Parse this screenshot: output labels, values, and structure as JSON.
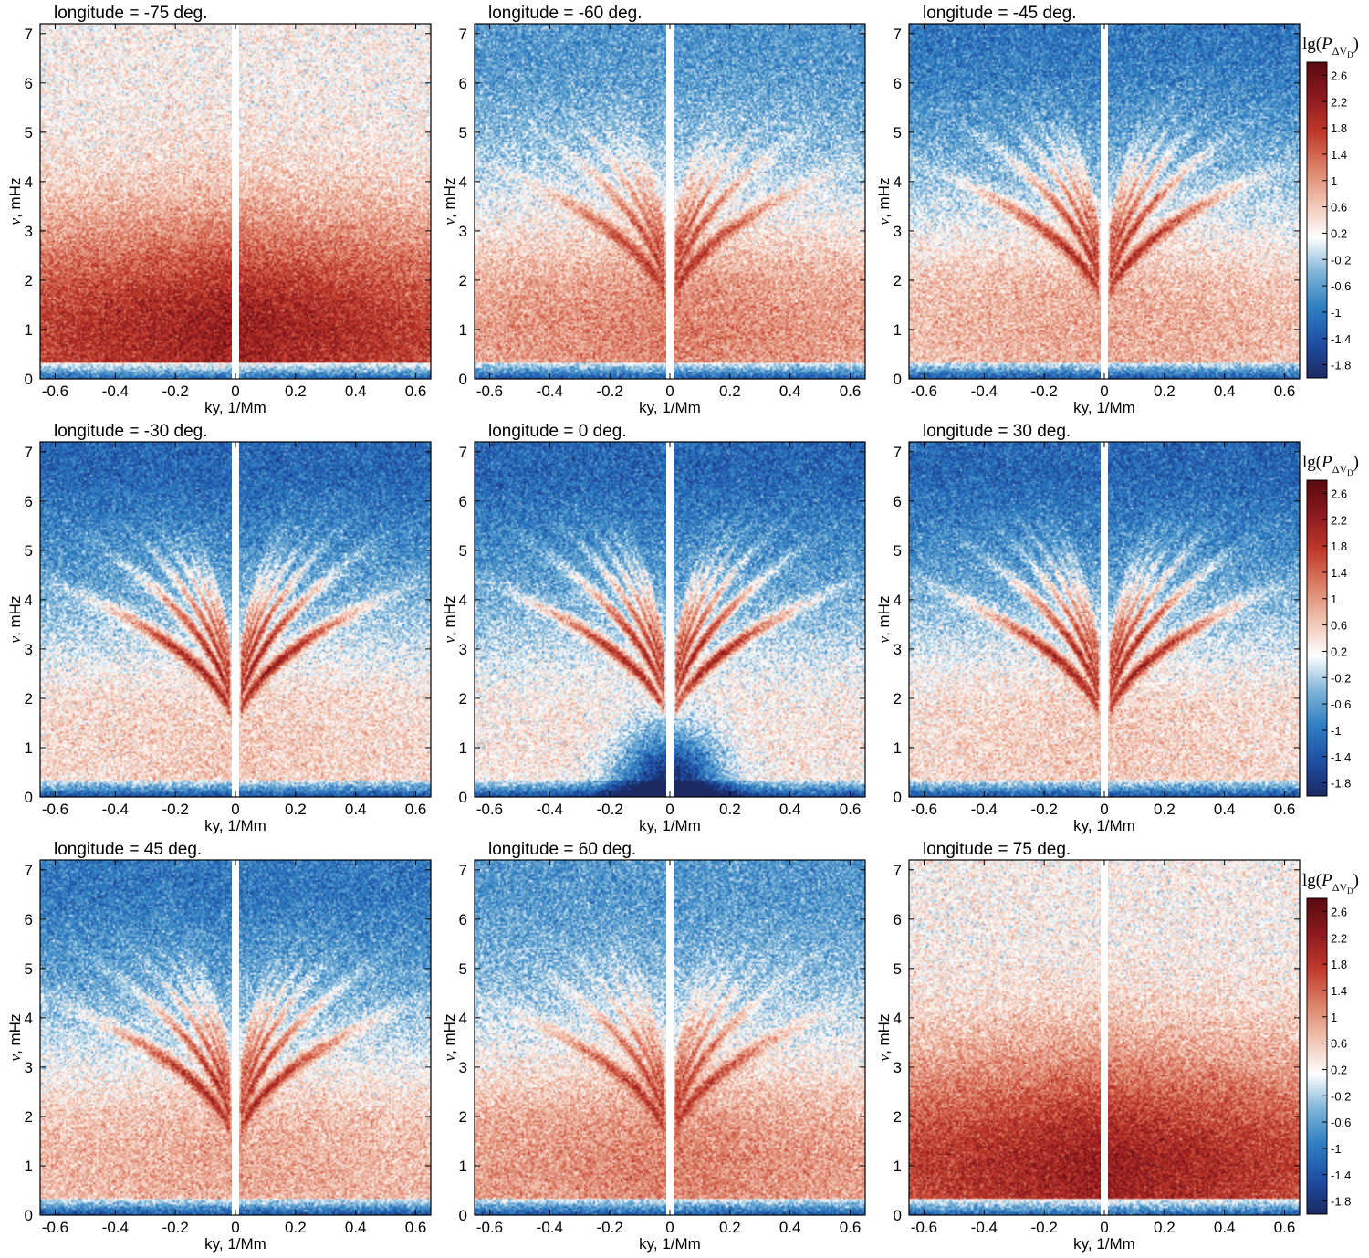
{
  "chart_data": {
    "type": "heatmap",
    "description_units": "log10 power of Doppler velocity difference",
    "x_axis": {
      "label": "ky, 1/Mm",
      "range": [
        -0.65,
        0.65
      ],
      "ticks": [
        "-0.6",
        "-0.4",
        "-0.2",
        "0",
        "0.2",
        "0.4",
        "0.6"
      ],
      "tick_values": [
        -0.6,
        -0.4,
        -0.2,
        0,
        0.2,
        0.4,
        0.6
      ]
    },
    "y_axis": {
      "label_symbol": "ν",
      "label_unit": ", mHz",
      "range": [
        0,
        7.2
      ],
      "ticks": [
        "0",
        "1",
        "2",
        "3",
        "4",
        "5",
        "6",
        "7"
      ],
      "tick_values": [
        0,
        1,
        2,
        3,
        4,
        5,
        6,
        7
      ]
    },
    "colorbar": {
      "title_prefix": "lg(",
      "title_P": "P",
      "title_sub_delta": "Δ",
      "title_sub_V": "V",
      "title_sub_D": "D",
      "title_suffix": ")",
      "range": [
        -2.0,
        2.8
      ],
      "ticks": [
        "2.6",
        "2.2",
        "1.8",
        "1.4",
        "1",
        "0.6",
        "0.2",
        "-0.2",
        "-0.6",
        "-1",
        "-1.4",
        "-1.8"
      ],
      "tick_values": [
        2.6,
        2.2,
        1.8,
        1.4,
        1.0,
        0.6,
        0.2,
        -0.2,
        -0.6,
        -1.0,
        -1.4,
        -1.8
      ],
      "colors": [
        "#1b2a63",
        "#1f4ea6",
        "#2d7fc2",
        "#7fb5d8",
        "#ffffff",
        "#f1c4b2",
        "#dd8068",
        "#c0392b",
        "#8e1a1f",
        "#5a0a10"
      ]
    },
    "panels": [
      {
        "title": "longitude = -75 deg.",
        "longitude": -75,
        "ridge_strength": 0.0,
        "low_freq_power": 2.2,
        "high_freq_power": 0.25,
        "hole": 0.0
      },
      {
        "title": "longitude = -60 deg.",
        "longitude": -60,
        "ridge_strength": 0.55,
        "low_freq_power": 1.2,
        "high_freq_power": -0.7,
        "hole": 0.0
      },
      {
        "title": "longitude = -45 deg.",
        "longitude": -45,
        "ridge_strength": 0.75,
        "low_freq_power": 0.9,
        "high_freq_power": -1.0,
        "hole": 0.0
      },
      {
        "title": "longitude = -30 deg.",
        "longitude": -30,
        "ridge_strength": 0.95,
        "low_freq_power": 0.6,
        "high_freq_power": -1.2,
        "hole": 0.0
      },
      {
        "title": "longitude = 0 deg.",
        "longitude": 0,
        "ridge_strength": 1.0,
        "low_freq_power": 0.4,
        "high_freq_power": -1.2,
        "hole": 1.0
      },
      {
        "title": "longitude = 30 deg.",
        "longitude": 30,
        "ridge_strength": 0.95,
        "low_freq_power": 0.6,
        "high_freq_power": -1.2,
        "hole": 0.0
      },
      {
        "title": "longitude = 45 deg.",
        "longitude": 45,
        "ridge_strength": 0.75,
        "low_freq_power": 0.9,
        "high_freq_power": -1.0,
        "hole": 0.0
      },
      {
        "title": "longitude = 60 deg.",
        "longitude": 60,
        "ridge_strength": 0.55,
        "low_freq_power": 1.2,
        "high_freq_power": -0.7,
        "hole": 0.0
      },
      {
        "title": "longitude = 75 deg.",
        "longitude": 75,
        "ridge_strength": 0.0,
        "low_freq_power": 2.2,
        "high_freq_power": 0.25,
        "hole": 0.0
      }
    ]
  }
}
